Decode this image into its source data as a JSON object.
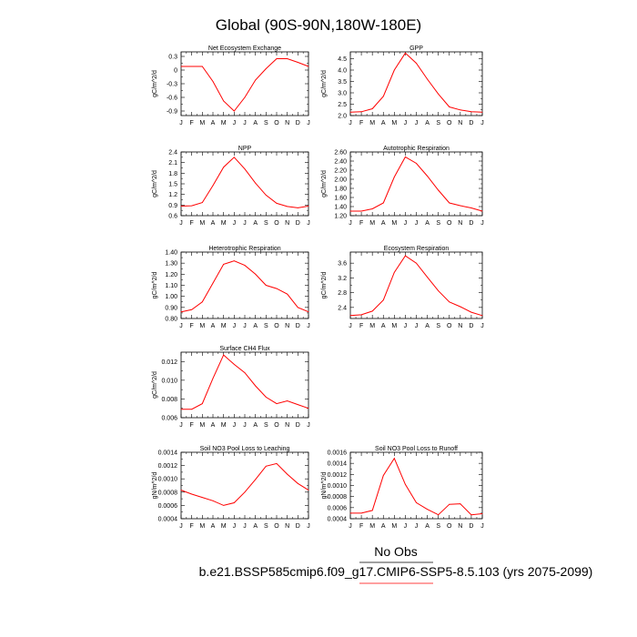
{
  "title": "Global (90S-90N,180W-180E)",
  "footer": {
    "obs_label": "No Obs",
    "case_label": "b.e21.BSSP585cmip6.f09_g17.CMIP6-SSP5-8.5.103 (yrs 2075-2099)",
    "obs_color": "#000000",
    "case_color": "#ff0000"
  },
  "series_color": "#ff0000",
  "chart_data": [
    {
      "type": "line",
      "title": "Net Ecosystem Exchange",
      "ylabel": "gC/m^2/d",
      "x": [
        "J",
        "F",
        "M",
        "A",
        "M",
        "J",
        "J",
        "A",
        "S",
        "O",
        "N",
        "D",
        "J"
      ],
      "values": [
        0.08,
        0.08,
        0.08,
        -0.25,
        -0.68,
        -0.9,
        -0.6,
        -0.22,
        0.03,
        0.25,
        0.25,
        0.17,
        0.08
      ],
      "ylim": [
        -1.0,
        0.4
      ],
      "yticks": [
        0.3,
        0.0,
        -0.3,
        -0.6,
        -0.9
      ],
      "ytick_labels": [
        "0.3",
        "0",
        "-0.3",
        "-0.6",
        "-0.9"
      ]
    },
    {
      "type": "line",
      "title": "GPP",
      "ylabel": "gC/m^2/d",
      "x": [
        "J",
        "F",
        "M",
        "A",
        "M",
        "J",
        "J",
        "A",
        "S",
        "O",
        "N",
        "D",
        "J"
      ],
      "values": [
        2.15,
        2.17,
        2.3,
        2.85,
        4.0,
        4.75,
        4.3,
        3.6,
        2.95,
        2.38,
        2.25,
        2.17,
        2.15
      ],
      "ylim": [
        2.0,
        4.8
      ],
      "yticks": [
        2.0,
        2.5,
        3.0,
        3.5,
        4.0,
        4.5
      ],
      "ytick_labels": [
        "2.0",
        "2.5",
        "3.0",
        "3.5",
        "4.0",
        "4.5"
      ]
    },
    {
      "type": "line",
      "title": "NPP",
      "ylabel": "gC/m^2/d",
      "x": [
        "J",
        "F",
        "M",
        "A",
        "M",
        "J",
        "J",
        "A",
        "S",
        "O",
        "N",
        "D",
        "J"
      ],
      "values": [
        0.87,
        0.88,
        0.97,
        1.45,
        1.97,
        2.25,
        1.92,
        1.52,
        1.18,
        0.95,
        0.86,
        0.82,
        0.87
      ],
      "ylim": [
        0.6,
        2.4
      ],
      "yticks": [
        0.6,
        0.9,
        1.2,
        1.5,
        1.8,
        2.1,
        2.4
      ],
      "ytick_labels": [
        "0.6",
        "0.9",
        "1.2",
        "1.5",
        "1.8",
        "2.1",
        "2.4"
      ]
    },
    {
      "type": "line",
      "title": "Autotrophic Respiration",
      "ylabel": "gC/m^2/d",
      "x": [
        "J",
        "F",
        "M",
        "A",
        "M",
        "J",
        "J",
        "A",
        "S",
        "O",
        "N",
        "D",
        "J"
      ],
      "values": [
        1.3,
        1.3,
        1.35,
        1.48,
        2.05,
        2.49,
        2.35,
        2.07,
        1.76,
        1.48,
        1.42,
        1.37,
        1.3
      ],
      "ylim": [
        1.2,
        2.6
      ],
      "yticks": [
        1.2,
        1.4,
        1.6,
        1.8,
        2.0,
        2.2,
        2.4,
        2.6
      ],
      "ytick_labels": [
        "1.20",
        "1.40",
        "1.60",
        "1.80",
        "2.00",
        "2.20",
        "2.40",
        "2.60"
      ]
    },
    {
      "type": "line",
      "title": "Heterotrophic Respiration",
      "ylabel": "gC/m^2/d",
      "x": [
        "J",
        "F",
        "M",
        "A",
        "M",
        "J",
        "J",
        "A",
        "S",
        "O",
        "N",
        "D",
        "J"
      ],
      "values": [
        0.86,
        0.88,
        0.95,
        1.12,
        1.29,
        1.32,
        1.28,
        1.2,
        1.1,
        1.07,
        1.02,
        0.9,
        0.86
      ],
      "ylim": [
        0.8,
        1.4
      ],
      "yticks": [
        0.8,
        0.9,
        1.0,
        1.1,
        1.2,
        1.3,
        1.4
      ],
      "ytick_labels": [
        "0.80",
        "0.90",
        "1.00",
        "1.10",
        "1.20",
        "1.30",
        "1.40"
      ]
    },
    {
      "type": "line",
      "title": "Ecosystem Respiration",
      "ylabel": "gC/m^2/d",
      "x": [
        "J",
        "F",
        "M",
        "A",
        "M",
        "J",
        "J",
        "A",
        "S",
        "O",
        "N",
        "D",
        "J"
      ],
      "values": [
        2.18,
        2.2,
        2.3,
        2.6,
        3.35,
        3.8,
        3.6,
        3.22,
        2.85,
        2.55,
        2.42,
        2.27,
        2.18
      ],
      "ylim": [
        2.1,
        3.9
      ],
      "yticks": [
        2.4,
        2.8,
        3.2,
        3.6
      ],
      "ytick_labels": [
        "2.4",
        "2.8",
        "3.2",
        "3.6"
      ]
    },
    {
      "type": "line",
      "title": "Surface CH4 Flux",
      "ylabel": "gC/m^2/d",
      "x": [
        "J",
        "F",
        "M",
        "A",
        "M",
        "J",
        "J",
        "A",
        "S",
        "O",
        "N",
        "D",
        "J"
      ],
      "values": [
        0.0069,
        0.0069,
        0.0075,
        0.0102,
        0.0127,
        0.0117,
        0.0108,
        0.0094,
        0.0082,
        0.0075,
        0.0078,
        0.0074,
        0.007
      ],
      "ylim": [
        0.006,
        0.013
      ],
      "yticks": [
        0.006,
        0.008,
        0.01,
        0.012
      ],
      "ytick_labels": [
        "0.006",
        "0.008",
        "0.010",
        "0.012"
      ]
    },
    {
      "type": "line",
      "title": "Soil NO3 Pool Loss to Leaching",
      "ylabel": "gN/m^2/d",
      "x": [
        "J",
        "F",
        "M",
        "A",
        "M",
        "J",
        "J",
        "A",
        "S",
        "O",
        "N",
        "D",
        "J"
      ],
      "values": [
        0.00083,
        0.00077,
        0.00072,
        0.00067,
        0.0006,
        0.00064,
        0.0008,
        0.00099,
        0.00119,
        0.00123,
        0.00107,
        0.00093,
        0.00083
      ],
      "ylim": [
        0.0004,
        0.0014
      ],
      "yticks": [
        0.0004,
        0.0006,
        0.0008,
        0.001,
        0.0012,
        0.0014
      ],
      "ytick_labels": [
        "0.0004",
        "0.0006",
        "0.0008",
        "0.0010",
        "0.0012",
        "0.0014"
      ]
    },
    {
      "type": "line",
      "title": "Soil NO3 Pool Loss to Runoff",
      "ylabel": "gN/m^2/d",
      "x": [
        "J",
        "F",
        "M",
        "A",
        "M",
        "J",
        "J",
        "A",
        "S",
        "O",
        "N",
        "D",
        "J"
      ],
      "values": [
        0.0005,
        0.0005,
        0.00055,
        0.00118,
        0.00149,
        0.00102,
        0.00069,
        0.00057,
        0.00047,
        0.00066,
        0.00067,
        0.00047,
        0.00049
      ],
      "ylim": [
        0.0004,
        0.0016
      ],
      "yticks": [
        0.0004,
        0.0006,
        0.0008,
        0.001,
        0.0012,
        0.0014,
        0.0016
      ],
      "ytick_labels": [
        "0.0004",
        "0.0006",
        "0.0008",
        "0.0010",
        "0.0012",
        "0.0014",
        "0.0016"
      ]
    }
  ]
}
